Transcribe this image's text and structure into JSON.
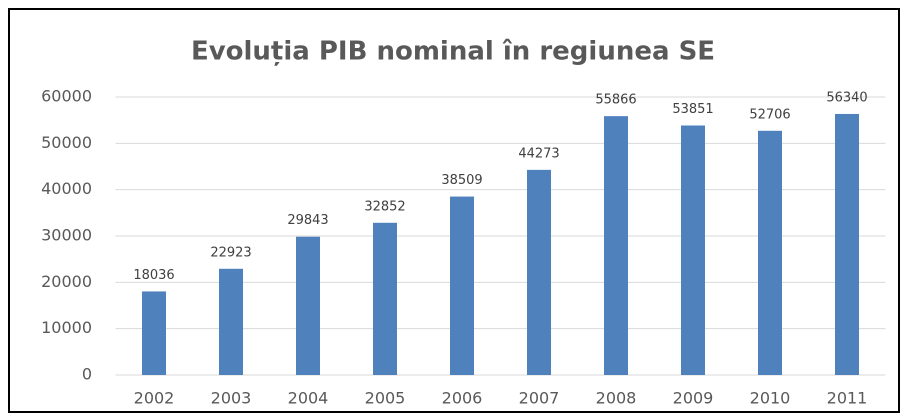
{
  "chart_data": {
    "type": "bar",
    "title": "Evoluția PIB nominal în regiunea SE",
    "categories": [
      "2002",
      "2003",
      "2004",
      "2005",
      "2006",
      "2007",
      "2008",
      "2009",
      "2010",
      "2011"
    ],
    "values": [
      18036,
      22923,
      29843,
      32852,
      38509,
      44273,
      55866,
      53851,
      52706,
      56340
    ],
    "color": "#4f81bd",
    "ylim": [
      0,
      60000
    ],
    "yticks": [
      0,
      10000,
      20000,
      30000,
      40000,
      50000,
      60000
    ],
    "grid": true
  }
}
